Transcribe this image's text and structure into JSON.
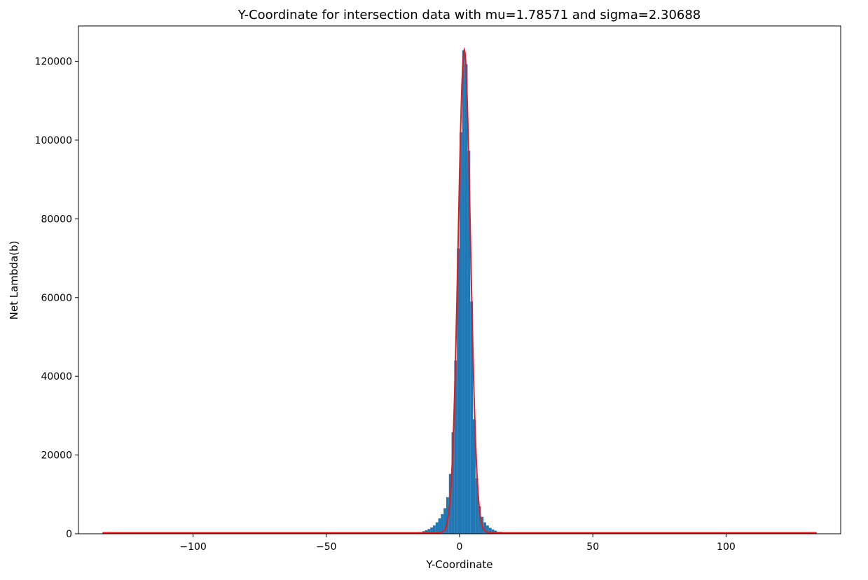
{
  "chart_data": {
    "type": "bar",
    "title": "Y-Coordinate for intersection data with mu=1.78571 and sigma=2.30688",
    "xlabel": "Y-Coordinate",
    "ylabel": "Net Lambda(b)",
    "xlim": [
      -143,
      143
    ],
    "ylim": [
      0,
      129000
    ],
    "xticks": [
      -100,
      -50,
      0,
      50,
      100
    ],
    "xtick_labels": [
      "−100",
      "−50",
      "0",
      "50",
      "100"
    ],
    "yticks": [
      0,
      20000,
      40000,
      60000,
      80000,
      100000,
      120000
    ],
    "ytick_labels": [
      "0",
      "20000",
      "40000",
      "60000",
      "80000",
      "100000",
      "120000"
    ],
    "grid": false,
    "bar_color": "#1f77b4",
    "fit_color": "#e41a1c",
    "histogram": {
      "bins": [
        {
          "x0": -20,
          "x1": -18,
          "value": 80
        },
        {
          "x0": -18,
          "x1": -16,
          "value": 200
        },
        {
          "x0": -16,
          "x1": -14,
          "value": 400
        },
        {
          "x0": -14,
          "x1": -13,
          "value": 650
        },
        {
          "x0": -13,
          "x1": -12,
          "value": 900
        },
        {
          "x0": -12,
          "x1": -11,
          "value": 1200
        },
        {
          "x0": -11,
          "x1": -10,
          "value": 1600
        },
        {
          "x0": -10,
          "x1": -9,
          "value": 2100
        },
        {
          "x0": -9,
          "x1": -8,
          "value": 2900
        },
        {
          "x0": -8,
          "x1": -7,
          "value": 3900
        },
        {
          "x0": -7,
          "x1": -6,
          "value": 5000
        },
        {
          "x0": -6,
          "x1": -5,
          "value": 6500
        },
        {
          "x0": -5,
          "x1": -4,
          "value": 9300
        },
        {
          "x0": -4,
          "x1": -3,
          "value": 15200
        },
        {
          "x0": -3,
          "x1": -2,
          "value": 25800
        },
        {
          "x0": -2,
          "x1": -1,
          "value": 44000
        },
        {
          "x0": -1,
          "x1": 0,
          "value": 72500
        },
        {
          "x0": 0,
          "x1": 1,
          "value": 102000
        },
        {
          "x0": 1,
          "x1": 2,
          "value": 122800
        },
        {
          "x0": 2,
          "x1": 3,
          "value": 119300
        },
        {
          "x0": 3,
          "x1": 4,
          "value": 97300
        },
        {
          "x0": 4,
          "x1": 5,
          "value": 59000
        },
        {
          "x0": 5,
          "x1": 6,
          "value": 29100
        },
        {
          "x0": 6,
          "x1": 7,
          "value": 14100
        },
        {
          "x0": 7,
          "x1": 8,
          "value": 7000
        },
        {
          "x0": 8,
          "x1": 9,
          "value": 4300
        },
        {
          "x0": 9,
          "x1": 10,
          "value": 2900
        },
        {
          "x0": 10,
          "x1": 11,
          "value": 2100
        },
        {
          "x0": 11,
          "x1": 12,
          "value": 1500
        },
        {
          "x0": 12,
          "x1": 13,
          "value": 1100
        },
        {
          "x0": 13,
          "x1": 14,
          "value": 800
        },
        {
          "x0": 14,
          "x1": 16,
          "value": 500
        },
        {
          "x0": 16,
          "x1": 18,
          "value": 250
        },
        {
          "x0": 18,
          "x1": 22,
          "value": 100
        }
      ]
    },
    "fit": {
      "type": "gaussian",
      "mu": 1.78571,
      "sigma": 2.30688,
      "amplitude": 122700,
      "baseline": 250,
      "x_range": [
        -134,
        134
      ]
    }
  }
}
